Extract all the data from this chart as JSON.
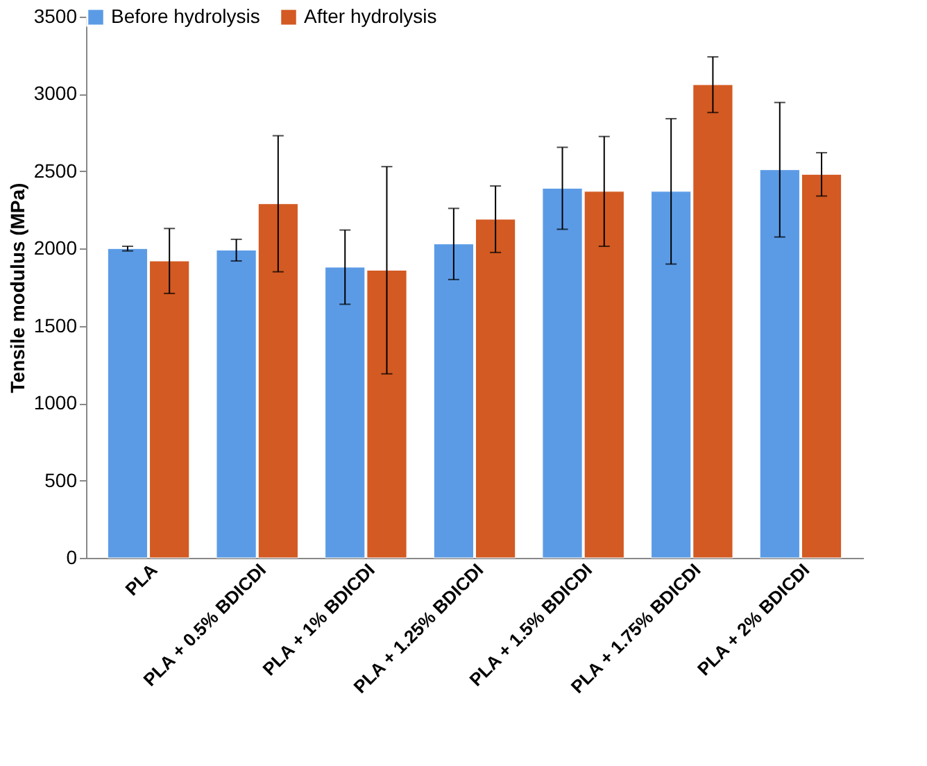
{
  "chart_data": {
    "type": "bar",
    "ylabel": "Tensile modulus (MPa)",
    "categories": [
      "PLA",
      "PLA + 0.5% BDICDI",
      "PLA + 1% BDICDI",
      "PLA + 1.25% BDICDI",
      "PLA + 1.5% BDICDI",
      "PLA + 1.75% BDICDI",
      "PLA + 2% BDICDI"
    ],
    "series": [
      {
        "name": "Before hydrolysis",
        "color": "#5b9be6",
        "values": [
          2000,
          1990,
          1880,
          2030,
          2390,
          2370,
          2510
        ],
        "errors": [
          15,
          70,
          240,
          230,
          265,
          470,
          435
        ]
      },
      {
        "name": "After hydrolysis",
        "color": "#d35a22",
        "values": [
          1920,
          2290,
          1860,
          2190,
          2370,
          3060,
          2480
        ],
        "errors": [
          210,
          440,
          670,
          215,
          355,
          180,
          140
        ]
      }
    ],
    "ylim": [
      0,
      3500
    ],
    "yticks": [
      0,
      500,
      1000,
      1500,
      2000,
      2500,
      3000,
      3500
    ],
    "grid": false,
    "legend": "top"
  }
}
